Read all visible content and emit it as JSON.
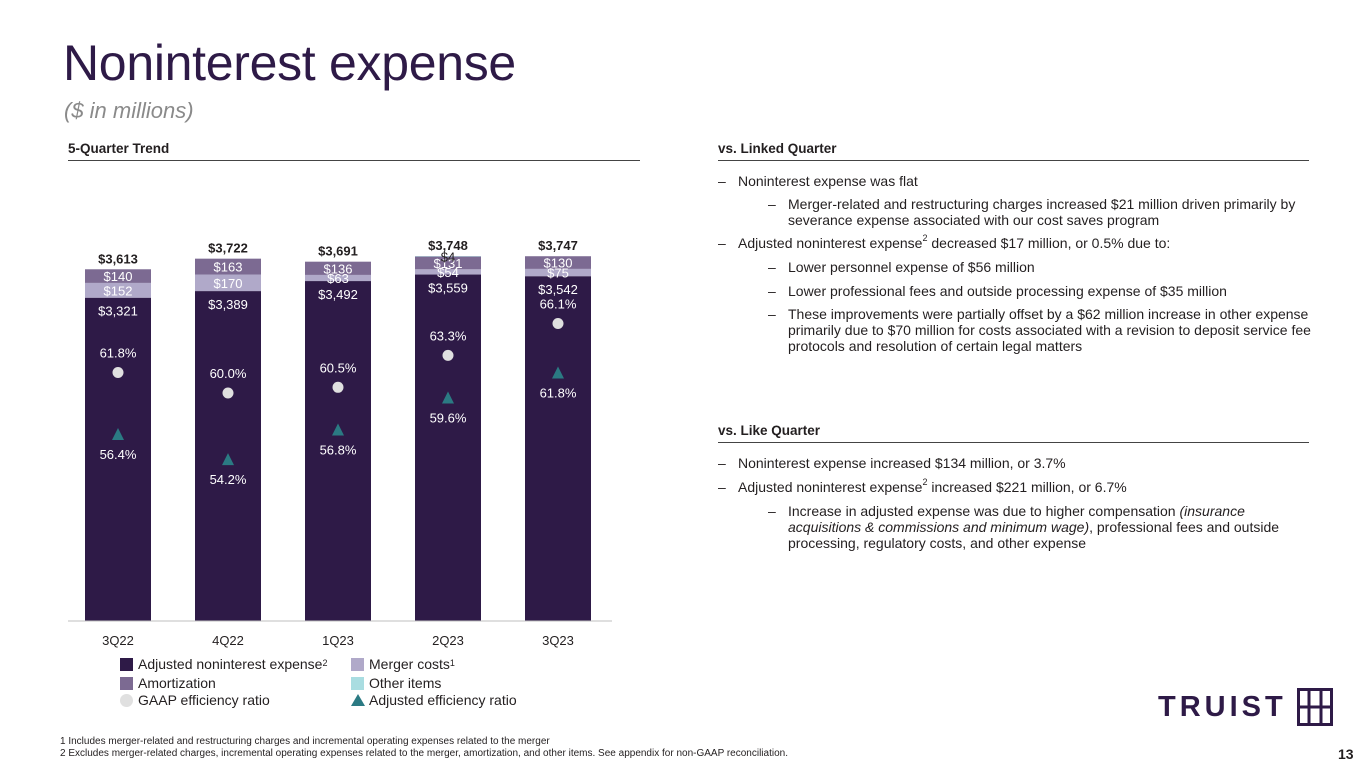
{
  "title": "Noninterest expense",
  "subtitle": "($ in millions)",
  "left_section_title": "5-Quarter Trend",
  "right_sections": {
    "linked_title": "vs. Linked Quarter",
    "like_title": "vs. Like Quarter"
  },
  "linked_bullets": [
    {
      "dash": "–",
      "text": "Noninterest expense was flat"
    },
    {
      "dash": "–",
      "text": "Merger-related and restructuring charges increased $21 million driven primarily by severance expense associated with our cost saves program"
    },
    {
      "dash": "–",
      "pre": "Adjusted noninterest expense",
      "sup": "2",
      "post": " decreased $17 million, or 0.5% due to:"
    },
    {
      "dash": "–",
      "text": "Lower personnel expense of $56 million"
    },
    {
      "dash": "–",
      "text": "Lower professional fees and outside processing expense of $35 million"
    },
    {
      "dash": "–",
      "text": "These improvements were partially offset by a $62 million increase in other expense primarily due to $70 million for costs associated with a revision to deposit service fee protocols and resolution of certain legal matters"
    }
  ],
  "like_bullets": [
    {
      "dash": "–",
      "text": "Noninterest expense increased $134 million, or 3.7%"
    },
    {
      "dash": "–",
      "pre": "Adjusted noninterest expense",
      "sup": "2",
      "post": " increased $221 million, or 6.7%"
    },
    {
      "dash": "–",
      "pre": "Increase in adjusted expense was due to higher compensation ",
      "italic": "(insurance acquisitions & commissions and minimum wage)",
      "post": ", professional fees and outside processing, regulatory costs, and other expense"
    }
  ],
  "legend": {
    "adjusted": "Adjusted noninterest expense",
    "adjusted_sup": "2",
    "merger": "Merger costs",
    "merger_sup": "1",
    "amortization": "Amortization",
    "other": "Other items",
    "gaap": "GAAP efficiency ratio",
    "adj_ratio": "Adjusted efficiency ratio"
  },
  "footnotes": [
    "1 Includes merger-related and restructuring charges and incremental operating expenses related to the merger",
    "2 Excludes merger-related charges, incremental operating expenses related to the merger, amortization, and other items. See appendix for non-GAAP reconciliation."
  ],
  "page_number": "13",
  "logo_text": "TRUIST",
  "colors": {
    "adjusted": "#2e1a47",
    "merger": "#b0a9c9",
    "amortization": "#7c6a92",
    "other": "#a9dde1",
    "gaap_marker": "#e0e0e0",
    "adj_marker": "#2b7a83"
  },
  "chart_data": {
    "type": "bar",
    "stacked": true,
    "categories": [
      "3Q22",
      "4Q22",
      "1Q23",
      "2Q23",
      "3Q23"
    ],
    "series": [
      {
        "name": "Adjusted noninterest expense",
        "values": [
          3321,
          3389,
          3492,
          3559,
          3542
        ],
        "labels": [
          "$3,321",
          "$3,389",
          "$3,492",
          "$3,559",
          "$3,542"
        ]
      },
      {
        "name": "Merger costs",
        "values": [
          152,
          170,
          63,
          54,
          75
        ],
        "labels": [
          "$152",
          "$170",
          "$63",
          "$54",
          "$75"
        ]
      },
      {
        "name": "Amortization",
        "values": [
          140,
          163,
          136,
          131,
          130
        ],
        "labels": [
          "$140",
          "$163",
          "$136",
          "$131",
          "$130"
        ]
      },
      {
        "name": "Other items",
        "values": [
          0,
          0,
          0,
          4,
          0
        ],
        "labels": [
          "",
          "",
          "",
          "$4",
          ""
        ]
      }
    ],
    "totals": [
      3613,
      3722,
      3691,
      3748,
      3747
    ],
    "total_labels": [
      "$3,613",
      "$3,722",
      "$3,691",
      "$3,748",
      "$3,747"
    ],
    "gaap_efficiency_ratio": [
      61.8,
      60.0,
      60.5,
      63.3,
      66.1
    ],
    "gaap_efficiency_labels": [
      "61.8%",
      "60.0%",
      "60.5%",
      "63.3%",
      "66.1%"
    ],
    "adjusted_efficiency_ratio": [
      56.4,
      54.2,
      56.8,
      59.6,
      61.8
    ],
    "adjusted_efficiency_labels": [
      "56.4%",
      "54.2%",
      "56.8%",
      "59.6%",
      "61.8%"
    ],
    "ylim": [
      0,
      3800
    ],
    "grid": false,
    "legend_position": "bottom"
  }
}
